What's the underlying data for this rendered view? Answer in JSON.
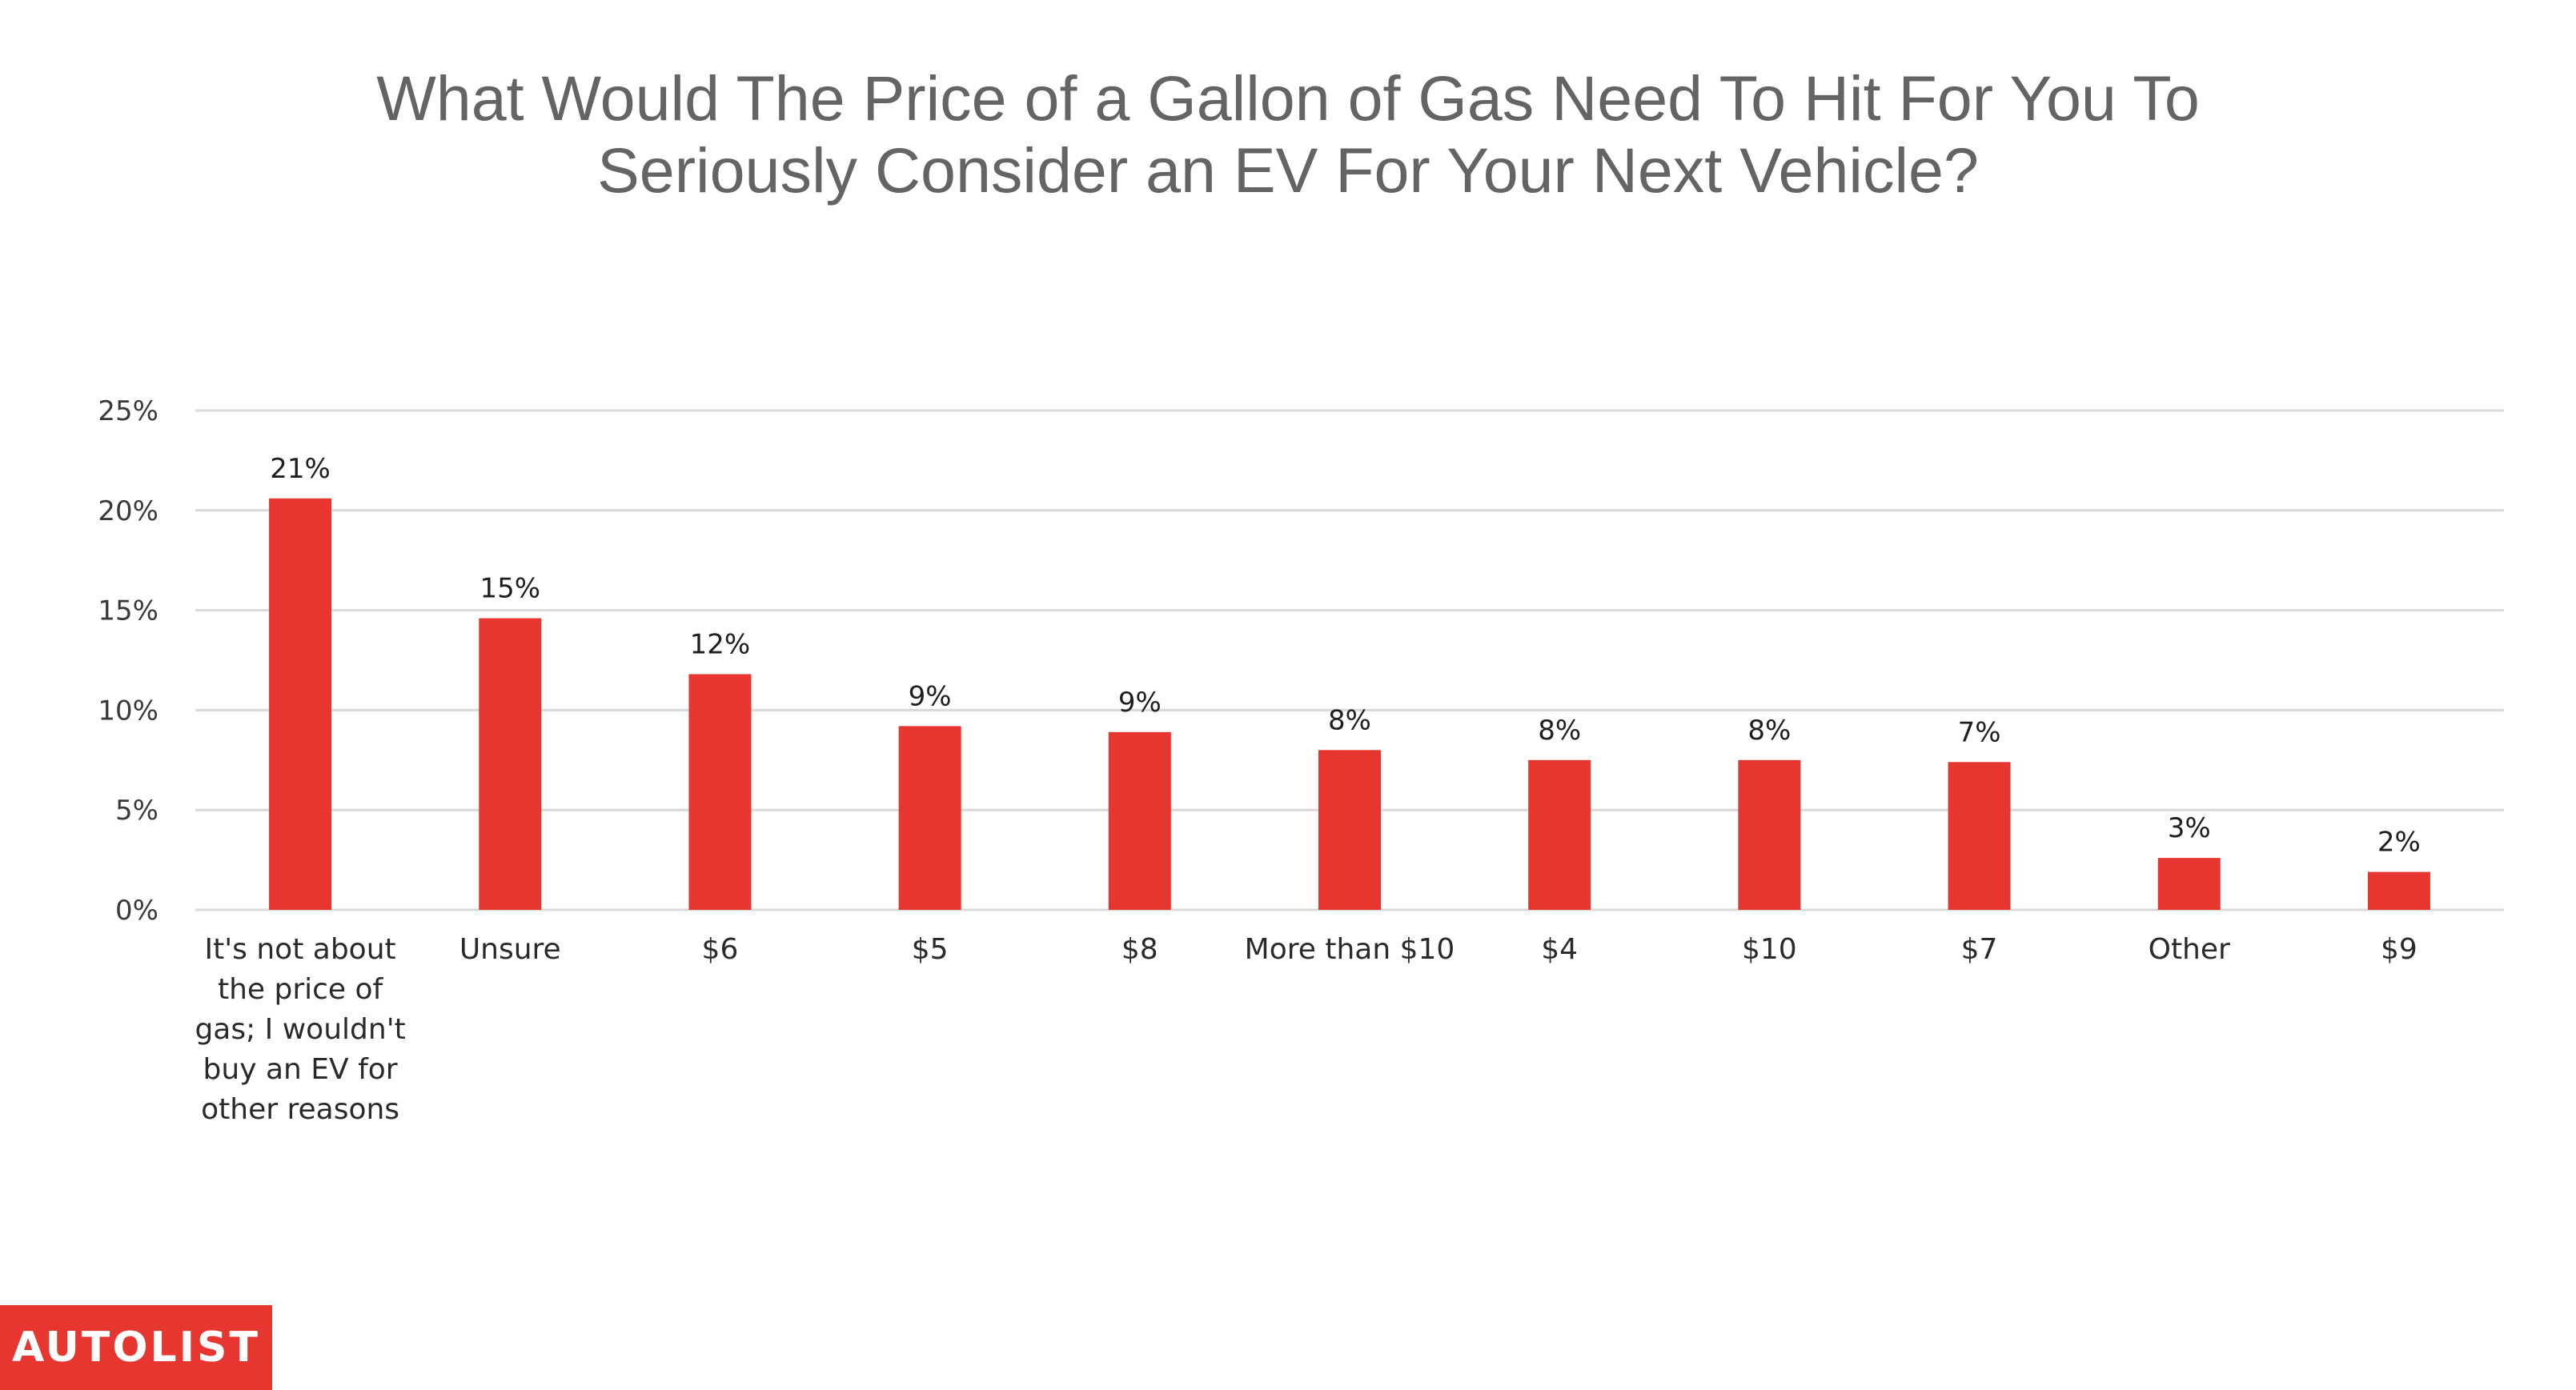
{
  "chart_data": {
    "type": "bar",
    "title_lines": [
      "What Would The Price of a Gallon of Gas Need To Hit For You To",
      "Seriously Consider an EV For Your Next Vehicle?"
    ],
    "categories": [
      [
        "It's not about",
        "the price of",
        "gas; I wouldn't",
        "buy an EV for",
        "other reasons"
      ],
      [
        "Unsure"
      ],
      [
        "$6"
      ],
      [
        "$5"
      ],
      [
        "$8"
      ],
      [
        "More than $10"
      ],
      [
        "$4"
      ],
      [
        "$10"
      ],
      [
        "$7"
      ],
      [
        "Other"
      ],
      [
        "$9"
      ]
    ],
    "values": [
      20.6,
      14.6,
      11.8,
      9.2,
      8.9,
      8.0,
      7.5,
      7.5,
      7.4,
      2.6,
      1.9
    ],
    "data_labels": [
      "21%",
      "15%",
      "12%",
      "9%",
      "9%",
      "8%",
      "8%",
      "8%",
      "7%",
      "3%",
      "2%"
    ],
    "y_ticks": [
      0,
      5,
      10,
      15,
      20,
      25
    ],
    "y_tick_labels": [
      "0%",
      "5%",
      "10%",
      "15%",
      "20%",
      "25%"
    ],
    "ylim": [
      0,
      25
    ],
    "xlabel": "",
    "ylabel": "",
    "grid": true,
    "bar_color": "#e73630",
    "grid_color": "#d9d9d9"
  },
  "brand": {
    "logo_text": "AUTOLIST",
    "color": "#e73630"
  }
}
